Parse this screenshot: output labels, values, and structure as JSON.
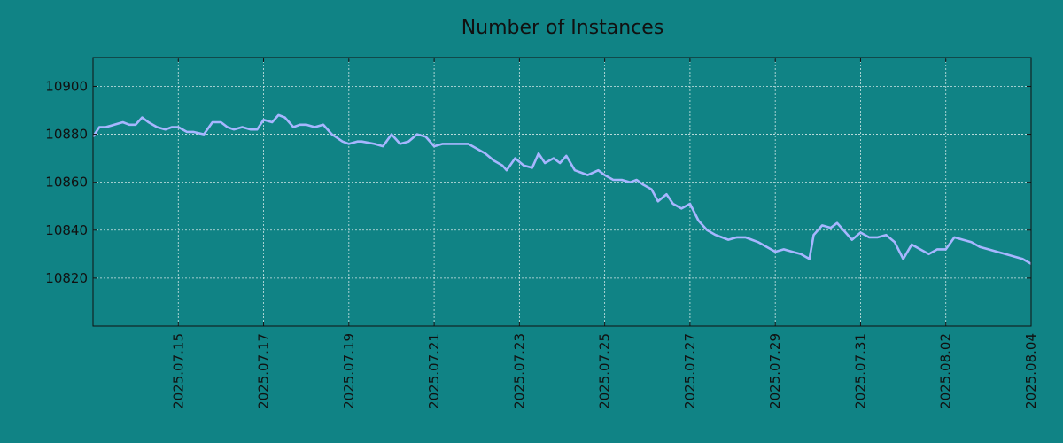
{
  "colors": {
    "background": "#108385",
    "line": "#a7b6ff",
    "grid": "#cfe6e6",
    "text": "#111111"
  },
  "chart_data": {
    "type": "line",
    "title": "Number of Instances",
    "xlabel": "",
    "ylabel": "",
    "x_start": "2025.07.13",
    "x_range": [
      "2025.07.13",
      "2025.08.04"
    ],
    "ylim": [
      10800,
      10912
    ],
    "grid": true,
    "x_ticks": [
      "2025.07.15",
      "2025.07.17",
      "2025.07.19",
      "2025.07.21",
      "2025.07.23",
      "2025.07.25",
      "2025.07.27",
      "2025.07.29",
      "2025.07.31",
      "2025.08.02",
      "2025.08.04"
    ],
    "y_ticks": [
      10820,
      10840,
      10860,
      10880,
      10900
    ],
    "series": [
      {
        "name": "",
        "x": [
          0,
          0.15,
          0.3,
          0.5,
          0.7,
          0.85,
          1.0,
          1.15,
          1.3,
          1.5,
          1.7,
          1.85,
          2.0,
          2.2,
          2.35,
          2.6,
          2.8,
          3.0,
          3.15,
          3.3,
          3.5,
          3.7,
          3.85,
          4.0,
          4.2,
          4.35,
          4.5,
          4.7,
          4.85,
          5.0,
          5.2,
          5.4,
          5.6,
          5.85,
          6.0,
          6.2,
          6.3,
          6.6,
          6.8,
          7.0,
          7.2,
          7.4,
          7.6,
          7.8,
          8.0,
          8.2,
          8.4,
          8.6,
          8.8,
          9.0,
          9.2,
          9.4,
          9.6,
          9.7,
          9.9,
          10.1,
          10.3,
          10.45,
          10.6,
          10.8,
          10.95,
          11.1,
          11.3,
          11.45,
          11.6,
          11.85,
          12.0,
          12.2,
          12.4,
          12.6,
          12.75,
          12.9,
          13.1,
          13.25,
          13.45,
          13.6,
          13.8,
          14.0,
          14.2,
          14.4,
          14.6,
          14.75,
          14.9,
          15.1,
          15.3,
          15.45,
          15.6,
          15.8,
          16.0,
          16.2,
          16.4,
          16.6,
          16.8,
          16.9,
          17.1,
          17.3,
          17.45,
          17.6,
          17.8,
          18.0,
          18.2,
          18.4,
          18.6,
          18.8,
          19.0,
          19.2,
          19.4,
          19.6,
          19.8,
          20.0,
          20.2,
          20.4,
          20.6,
          20.8,
          21.0,
          21.2,
          21.4,
          21.6,
          21.8,
          22.0
        ],
        "y": [
          10879,
          10883,
          10883,
          10884,
          10885,
          10884,
          10884,
          10887,
          10885,
          10883,
          10882,
          10883,
          10883,
          10881,
          10881,
          10880,
          10885,
          10885,
          10883,
          10882,
          10883,
          10882,
          10882,
          10886,
          10885,
          10888,
          10887,
          10883,
          10884,
          10884,
          10883,
          10884,
          10880,
          10877,
          10876,
          10877,
          10877,
          10876,
          10875,
          10880,
          10876,
          10877,
          10880,
          10879,
          10875,
          10876,
          10876,
          10876,
          10876,
          10874,
          10872,
          10869,
          10867,
          10865,
          10870,
          10867,
          10866,
          10872,
          10868,
          10870,
          10868,
          10871,
          10865,
          10864,
          10863,
          10865,
          10863,
          10861,
          10861,
          10860,
          10861,
          10859,
          10857,
          10852,
          10855,
          10851,
          10849,
          10851,
          10844,
          10840,
          10838,
          10837,
          10836,
          10837,
          10837,
          10836,
          10835,
          10833,
          10831,
          10832,
          10831,
          10830,
          10828,
          10838,
          10842,
          10841,
          10843,
          10840,
          10836,
          10839,
          10837,
          10837,
          10838,
          10835,
          10828,
          10834,
          10832,
          10830,
          10832,
          10832,
          10837,
          10836,
          10835,
          10833,
          10832,
          10831,
          10830,
          10829,
          10828,
          10826
        ]
      }
    ]
  }
}
